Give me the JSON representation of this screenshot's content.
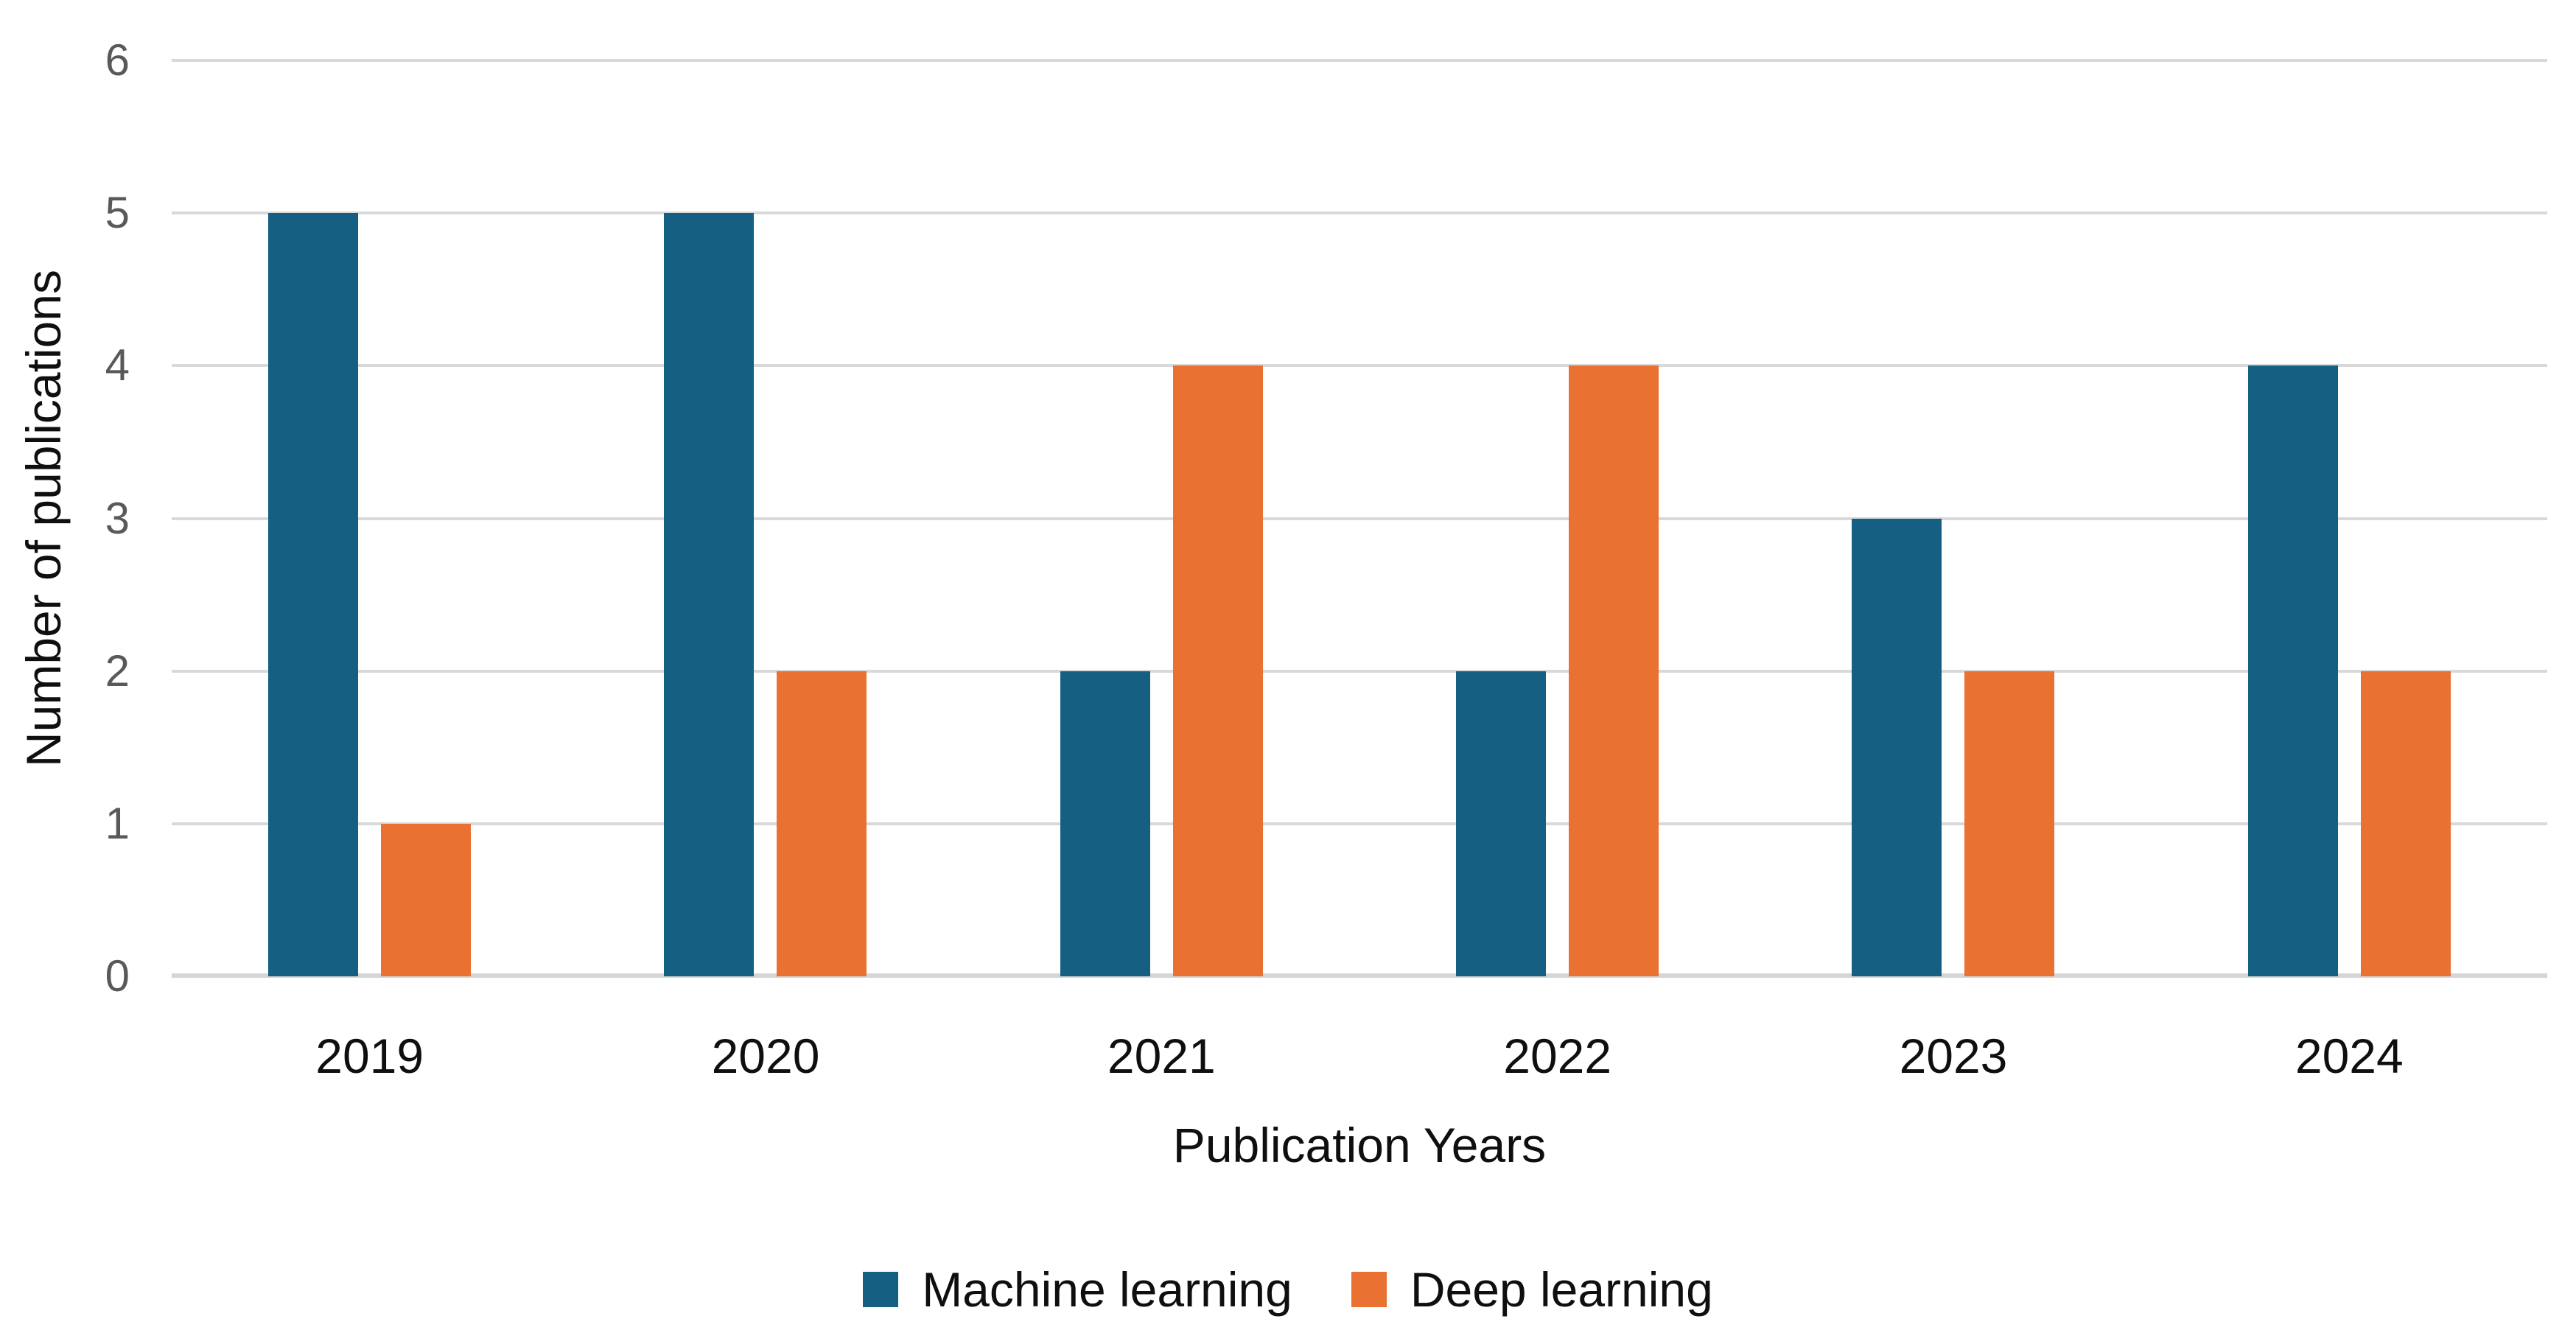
{
  "chart_data": {
    "type": "bar",
    "title": "",
    "categories": [
      "2019",
      "2020",
      "2021",
      "2022",
      "2023",
      "2024"
    ],
    "series": [
      {
        "name": "Machine learning",
        "color": "#156082",
        "values": [
          5,
          5,
          2,
          2,
          3,
          4
        ]
      },
      {
        "name": "Deep learning",
        "color": "#E97132",
        "values": [
          1,
          2,
          4,
          4,
          2,
          2
        ]
      }
    ],
    "xlabel": "Publication Years",
    "ylabel": "Number of publications",
    "ylim": [
      0,
      6
    ],
    "yticks": [
      0,
      1,
      2,
      3,
      4,
      5,
      6
    ],
    "grid": "horizontal",
    "legend_position": "bottom"
  },
  "colors": {
    "background": "#FFFFFF",
    "gridline": "#D9D9D9",
    "axis_line": "#D6D6D6",
    "y_tick_text": "#595959",
    "text": "#0F0F0F"
  }
}
